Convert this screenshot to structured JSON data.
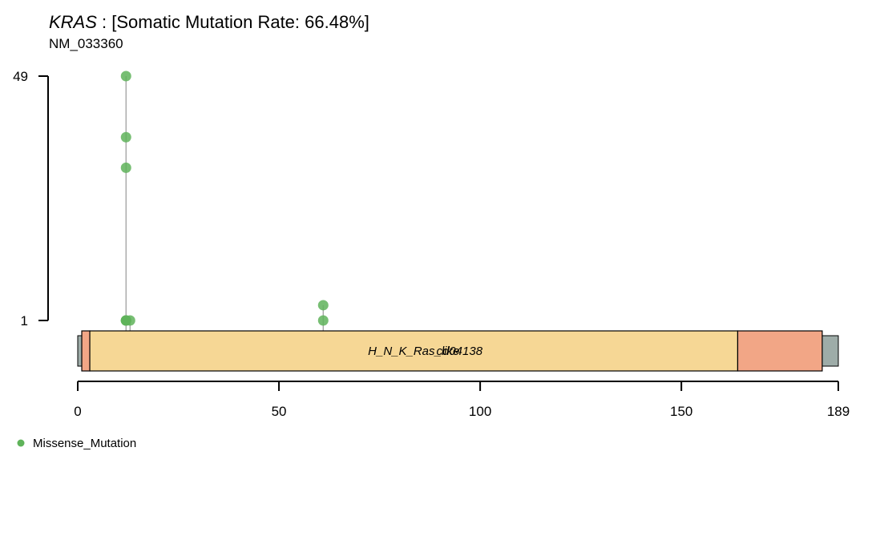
{
  "chart_data": {
    "type": "lollipop",
    "title": {
      "gene": "KRAS",
      "rest": " : [Somatic Mutation Rate: 66.48%]"
    },
    "subtitle": "NM_033360",
    "protein_length": 189,
    "x_ticks": [
      0,
      50,
      100,
      150,
      189
    ],
    "y_ticks": [
      1,
      49
    ],
    "colors": {
      "protein_bar": "#9EACA8",
      "missense": "#5FB35A",
      "stem": "#A0A0A0"
    },
    "domains": [
      {
        "start": 1,
        "end": 3,
        "color": "#F2A686",
        "label": ""
      },
      {
        "start": 3,
        "end": 164,
        "color": "#F6D795",
        "label": "H_N_K_Ras_like"
      },
      {
        "start": 164,
        "end": 185,
        "color": "#F2A686",
        "label": ""
      }
    ],
    "domain_overlay_label": "cd04138",
    "mutation_sites": [
      {
        "position": 12,
        "stacked_points": [
          1,
          1,
          1,
          1,
          31,
          37,
          49
        ]
      },
      {
        "position": 13,
        "stacked_points": [
          1
        ]
      },
      {
        "position": 61,
        "stacked_points": [
          1,
          4
        ]
      }
    ],
    "legend": [
      {
        "label": "Missense_Mutation",
        "color": "#5FB35A"
      }
    ]
  }
}
